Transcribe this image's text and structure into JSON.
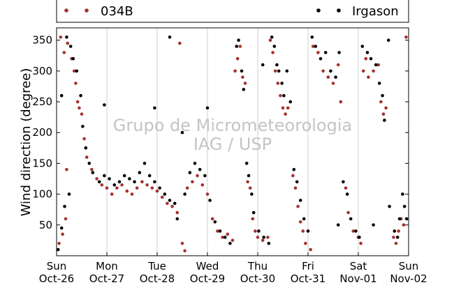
{
  "chart_data": {
    "type": "scatter",
    "title": "",
    "xlabel": "",
    "ylabel": "Wind direction (degree)",
    "ylim": [
      0,
      370
    ],
    "yticks": [
      50,
      100,
      150,
      200,
      250,
      300,
      350
    ],
    "xlim": [
      0,
      7
    ],
    "xtick_positions": [
      0,
      1,
      2,
      3,
      4,
      5,
      6,
      7
    ],
    "xtick_days": [
      "Sun",
      "Mon",
      "Tue",
      "Wed",
      "Thu",
      "Fri",
      "Sat",
      "Sun"
    ],
    "xtick_dates": [
      "Oct-26",
      "Oct-27",
      "Oct-28",
      "Oct-29",
      "Oct-30",
      "Oct-31",
      "Nov-01",
      "Nov-02"
    ],
    "x_unit": "days since Sun Oct-26 00:00",
    "grid": "vertical",
    "legend": {
      "placement": "top (outside plot)",
      "entries": [
        {
          "label": "034B",
          "color": "#a5312f"
        },
        {
          "label": "Irgason",
          "color": "#000000"
        }
      ]
    },
    "watermark": [
      "Grupo de Micrometeorologia",
      "IAG / USP"
    ],
    "series": [
      {
        "name": "034B",
        "color": "#a5312f",
        "points": [
          [
            0.05,
            20
          ],
          [
            0.12,
            35
          ],
          [
            0.18,
            60
          ],
          [
            0.2,
            140
          ],
          [
            0.08,
            355
          ],
          [
            0.15,
            330
          ],
          [
            0.22,
            345
          ],
          [
            0.3,
            320
          ],
          [
            0.35,
            300
          ],
          [
            0.38,
            280
          ],
          [
            0.42,
            250
          ],
          [
            0.45,
            240
          ],
          [
            0.5,
            230
          ],
          [
            0.55,
            190
          ],
          [
            0.6,
            160
          ],
          [
            0.7,
            140
          ],
          [
            0.8,
            125
          ],
          [
            0.9,
            115
          ],
          [
            1.0,
            110
          ],
          [
            1.1,
            100
          ],
          [
            1.2,
            110
          ],
          [
            1.3,
            115
          ],
          [
            1.4,
            105
          ],
          [
            1.5,
            100
          ],
          [
            1.6,
            110
          ],
          [
            1.7,
            120
          ],
          [
            1.8,
            115
          ],
          [
            1.9,
            110
          ],
          [
            2.0,
            105
          ],
          [
            2.1,
            95
          ],
          [
            2.2,
            85
          ],
          [
            2.3,
            80
          ],
          [
            2.4,
            70
          ],
          [
            2.45,
            345
          ],
          [
            2.5,
            20
          ],
          [
            2.55,
            8
          ],
          [
            2.6,
            110
          ],
          [
            2.7,
            120
          ],
          [
            2.8,
            130
          ],
          [
            2.9,
            115
          ],
          [
            3.0,
            100
          ],
          [
            3.1,
            60
          ],
          [
            3.2,
            40
          ],
          [
            3.3,
            30
          ],
          [
            3.4,
            35
          ],
          [
            3.5,
            25
          ],
          [
            3.55,
            300
          ],
          [
            3.6,
            320
          ],
          [
            3.65,
            340
          ],
          [
            3.7,
            290
          ],
          [
            3.75,
            280
          ],
          [
            3.8,
            120
          ],
          [
            3.85,
            110
          ],
          [
            3.9,
            60
          ],
          [
            3.95,
            40
          ],
          [
            4.0,
            30
          ],
          [
            4.1,
            25
          ],
          [
            4.2,
            30
          ],
          [
            4.25,
            350
          ],
          [
            4.3,
            330
          ],
          [
            4.35,
            300
          ],
          [
            4.4,
            280
          ],
          [
            4.45,
            260
          ],
          [
            4.5,
            240
          ],
          [
            4.55,
            230
          ],
          [
            4.6,
            240
          ],
          [
            4.7,
            130
          ],
          [
            4.75,
            110
          ],
          [
            4.8,
            80
          ],
          [
            4.85,
            55
          ],
          [
            4.9,
            40
          ],
          [
            4.95,
            20
          ],
          [
            5.05,
            10
          ],
          [
            5.1,
            340
          ],
          [
            5.2,
            330
          ],
          [
            5.3,
            300
          ],
          [
            5.4,
            290
          ],
          [
            5.5,
            280
          ],
          [
            5.6,
            310
          ],
          [
            5.65,
            250
          ],
          [
            5.75,
            110
          ],
          [
            5.8,
            70
          ],
          [
            5.9,
            40
          ],
          [
            6.0,
            30
          ],
          [
            6.05,
            20
          ],
          [
            6.1,
            300
          ],
          [
            6.15,
            320
          ],
          [
            6.2,
            290
          ],
          [
            6.3,
            300
          ],
          [
            6.4,
            310
          ],
          [
            6.45,
            250
          ],
          [
            6.5,
            230
          ],
          [
            6.55,
            240
          ],
          [
            6.7,
            30
          ],
          [
            6.75,
            20
          ],
          [
            6.8,
            40
          ],
          [
            6.85,
            60
          ],
          [
            6.9,
            50
          ],
          [
            6.95,
            355
          ]
        ]
      },
      {
        "name": "Irgason",
        "color": "#000000",
        "points": [
          [
            0.03,
            10
          ],
          [
            0.1,
            45
          ],
          [
            0.16,
            80
          ],
          [
            0.25,
            100
          ],
          [
            0.1,
            260
          ],
          [
            0.2,
            355
          ],
          [
            0.28,
            340
          ],
          [
            0.33,
            320
          ],
          [
            0.4,
            300
          ],
          [
            0.48,
            260
          ],
          [
            0.52,
            210
          ],
          [
            0.58,
            175
          ],
          [
            0.65,
            150
          ],
          [
            0.72,
            135
          ],
          [
            0.85,
            120
          ],
          [
            0.95,
            130
          ],
          [
            1.05,
            125
          ],
          [
            1.15,
            115
          ],
          [
            1.25,
            120
          ],
          [
            1.35,
            130
          ],
          [
            1.45,
            125
          ],
          [
            1.55,
            120
          ],
          [
            1.65,
            135
          ],
          [
            1.75,
            150
          ],
          [
            1.85,
            130
          ],
          [
            1.95,
            120
          ],
          [
            2.05,
            110
          ],
          [
            2.15,
            100
          ],
          [
            2.25,
            90
          ],
          [
            2.35,
            85
          ],
          [
            2.4,
            60
          ],
          [
            2.5,
            200
          ],
          [
            2.55,
            100
          ],
          [
            2.65,
            135
          ],
          [
            2.75,
            150
          ],
          [
            2.85,
            140
          ],
          [
            2.95,
            130
          ],
          [
            3.05,
            90
          ],
          [
            3.15,
            55
          ],
          [
            3.25,
            40
          ],
          [
            3.35,
            30
          ],
          [
            3.45,
            20
          ],
          [
            3.58,
            340
          ],
          [
            3.62,
            350
          ],
          [
            3.68,
            300
          ],
          [
            3.72,
            270
          ],
          [
            3.78,
            150
          ],
          [
            3.82,
            130
          ],
          [
            3.88,
            100
          ],
          [
            3.92,
            70
          ],
          [
            4.02,
            40
          ],
          [
            4.12,
            30
          ],
          [
            4.22,
            20
          ],
          [
            4.28,
            355
          ],
          [
            4.33,
            340
          ],
          [
            4.38,
            310
          ],
          [
            4.42,
            300
          ],
          [
            4.48,
            280
          ],
          [
            4.52,
            260
          ],
          [
            4.58,
            300
          ],
          [
            4.65,
            250
          ],
          [
            4.72,
            140
          ],
          [
            4.78,
            120
          ],
          [
            4.85,
            90
          ],
          [
            4.92,
            60
          ],
          [
            5.0,
            40
          ],
          [
            5.08,
            355
          ],
          [
            5.15,
            340
          ],
          [
            5.25,
            320
          ],
          [
            5.35,
            330
          ],
          [
            5.45,
            300
          ],
          [
            5.55,
            290
          ],
          [
            5.62,
            330
          ],
          [
            5.7,
            120
          ],
          [
            5.78,
            100
          ],
          [
            5.85,
            60
          ],
          [
            5.95,
            40
          ],
          [
            6.02,
            30
          ],
          [
            6.08,
            340
          ],
          [
            6.18,
            330
          ],
          [
            6.25,
            320
          ],
          [
            6.35,
            310
          ],
          [
            6.42,
            280
          ],
          [
            6.48,
            260
          ],
          [
            6.52,
            220
          ],
          [
            6.62,
            80
          ],
          [
            6.72,
            40
          ],
          [
            6.78,
            30
          ],
          [
            6.82,
            60
          ],
          [
            6.88,
            100
          ],
          [
            6.92,
            80
          ],
          [
            6.96,
            60
          ],
          [
            2.25,
            355
          ],
          [
            1.95,
            240
          ],
          [
            3.0,
            240
          ],
          [
            0.95,
            245
          ],
          [
            5.6,
            50
          ],
          [
            6.3,
            50
          ],
          [
            4.1,
            310
          ],
          [
            6.6,
            350
          ]
        ]
      }
    ]
  }
}
